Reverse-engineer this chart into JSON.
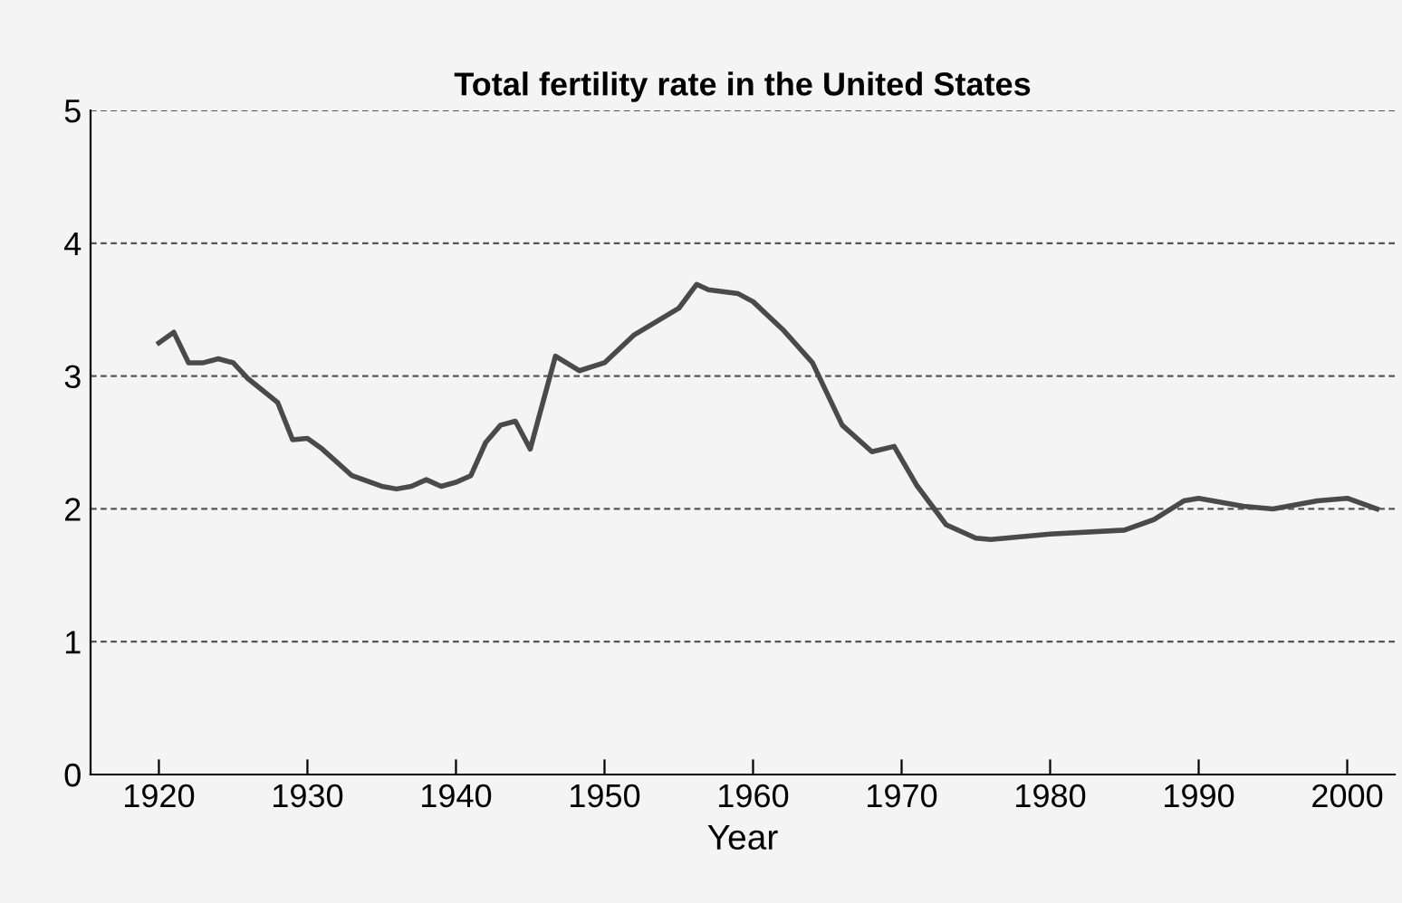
{
  "chart_data": {
    "type": "line",
    "title": "Total fertility rate in the United States",
    "xlabel": "Year",
    "x": [
      1920,
      1921,
      1922,
      1923,
      1924,
      1925,
      1926,
      1928,
      1929,
      1930,
      1931,
      1933,
      1935,
      1936,
      1937,
      1938,
      1939,
      1940,
      1941,
      1942,
      1943,
      1944,
      1945,
      1946.7,
      1948.3,
      1950,
      1952,
      1955,
      1956.2,
      1957,
      1959,
      1960,
      1962,
      1964,
      1966,
      1968,
      1969.5,
      1971,
      1973,
      1975,
      1976,
      1980,
      1985,
      1987,
      1989,
      1990,
      1993,
      1995,
      1998,
      2000,
      2002
    ],
    "series": [
      {
        "color": "#4a4a4a",
        "values": [
          3.25,
          3.33,
          3.1,
          3.1,
          3.13,
          3.1,
          2.98,
          2.8,
          2.52,
          2.53,
          2.45,
          2.25,
          2.17,
          2.15,
          2.17,
          2.22,
          2.17,
          2.2,
          2.25,
          2.5,
          2.63,
          2.66,
          2.45,
          3.15,
          3.04,
          3.1,
          3.31,
          3.51,
          3.69,
          3.65,
          3.62,
          3.56,
          3.35,
          3.1,
          2.63,
          2.43,
          2.47,
          2.18,
          1.88,
          1.78,
          1.77,
          1.81,
          1.84,
          1.92,
          2.06,
          2.08,
          2.02,
          2.0,
          2.06,
          2.08,
          2.0
        ]
      }
    ],
    "xlim": [
      1915.4,
      2003.2
    ],
    "ylim": [
      0,
      5
    ],
    "xticks": [
      1920,
      1930,
      1940,
      1950,
      1960,
      1970,
      1980,
      1990,
      2000
    ],
    "yticks": [
      0,
      1,
      2,
      3,
      4,
      5
    ],
    "grid": "y",
    "line_style": "solid",
    "marker": "none",
    "legend": false
  }
}
